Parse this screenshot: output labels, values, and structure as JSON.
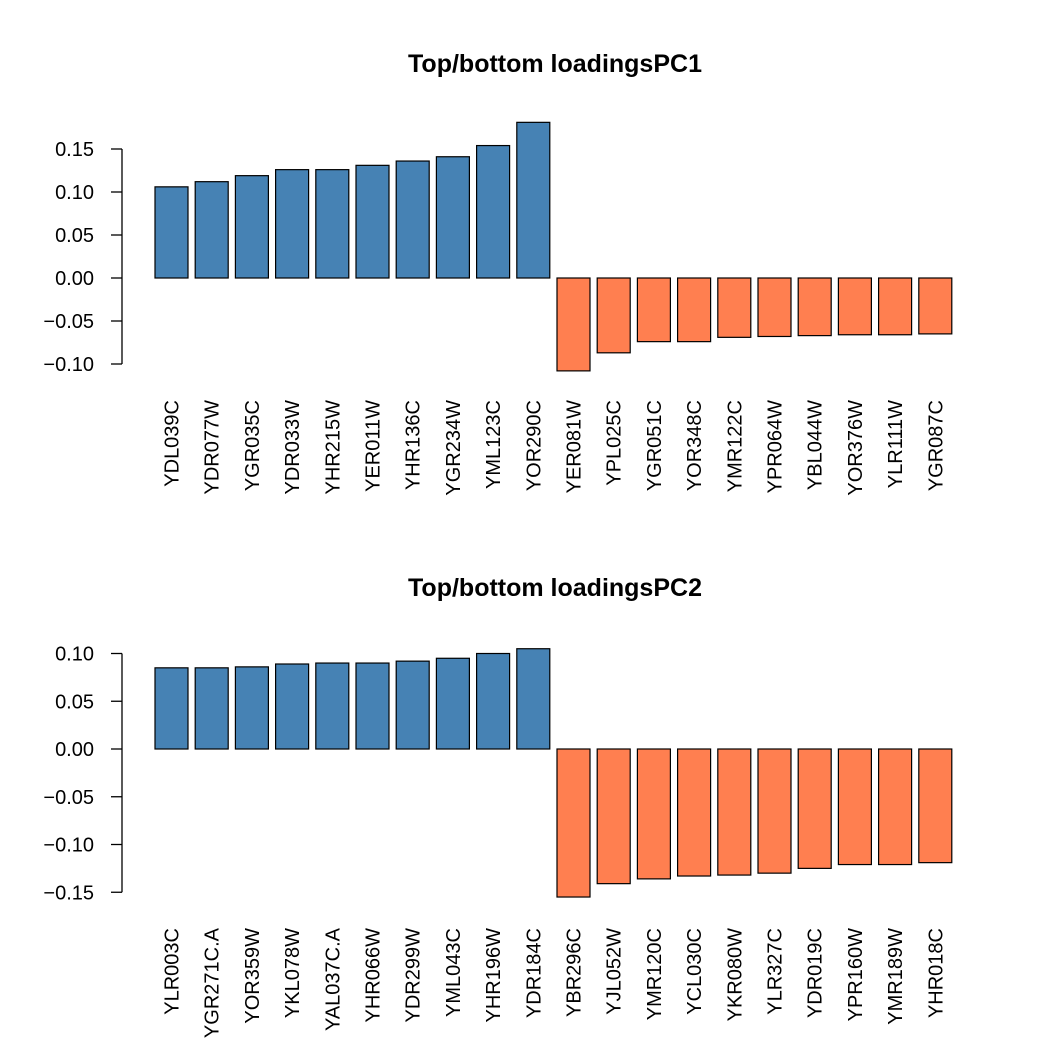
{
  "chart_data": [
    {
      "type": "bar",
      "title": "Top/bottom loadingsPC1",
      "xlabel": "",
      "ylabel": "",
      "ylim": [
        -0.11,
        0.185
      ],
      "yticks": [
        0.15,
        0.1,
        0.05,
        0.0,
        -0.05,
        -0.1
      ],
      "ytick_labels": [
        "0.15",
        "0.10",
        "0.05",
        "0.00",
        "−0.05",
        "−0.10"
      ],
      "colors": {
        "positive": "#4682B4",
        "negative": "#FF7F50"
      },
      "categories": [
        "YDL039C",
        "YDR077W",
        "YGR035C",
        "YDR033W",
        "YHR215W",
        "YER011W",
        "YHR136C",
        "YGR234W",
        "YML123C",
        "YOR290C",
        "YER081W",
        "YPL025C",
        "YGR051C",
        "YOR348C",
        "YMR122C",
        "YPR064W",
        "YBL044W",
        "YOR376W",
        "YLR111W",
        "YGR087C"
      ],
      "values": [
        0.106,
        0.112,
        0.119,
        0.126,
        0.126,
        0.131,
        0.136,
        0.141,
        0.154,
        0.181,
        -0.108,
        -0.087,
        -0.074,
        -0.074,
        -0.069,
        -0.068,
        -0.067,
        -0.066,
        -0.066,
        -0.065
      ]
    },
    {
      "type": "bar",
      "title": "Top/bottom loadingsPC2",
      "xlabel": "",
      "ylabel": "",
      "ylim": [
        -0.155,
        0.106
      ],
      "yticks": [
        0.1,
        0.05,
        0.0,
        -0.05,
        -0.1,
        -0.15
      ],
      "ytick_labels": [
        "0.10",
        "0.05",
        "0.00",
        "−0.05",
        "−0.10",
        "−0.15"
      ],
      "colors": {
        "positive": "#4682B4",
        "negative": "#FF7F50"
      },
      "categories": [
        "YLR003C",
        "YGR271C.A",
        "YOR359W",
        "YKL078W",
        "YAL037C.A",
        "YHR066W",
        "YDR299W",
        "YML043C",
        "YHR196W",
        "YDR184C",
        "YBR296C",
        "YJL052W",
        "YMR120C",
        "YCL030C",
        "YKR080W",
        "YLR327C",
        "YDR019C",
        "YPR160W",
        "YMR189W",
        "YHR018C"
      ],
      "values": [
        0.085,
        0.085,
        0.086,
        0.089,
        0.09,
        0.09,
        0.092,
        0.095,
        0.1,
        0.105,
        -0.155,
        -0.141,
        -0.136,
        -0.133,
        -0.132,
        -0.13,
        -0.125,
        -0.121,
        -0.121,
        -0.119
      ]
    }
  ]
}
